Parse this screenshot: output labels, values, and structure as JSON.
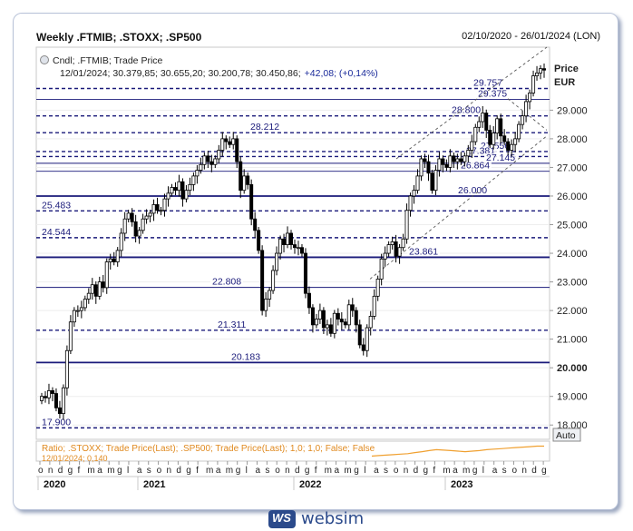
{
  "header": {
    "title": "Weekly .FTMIB; .STOXX; .SP500",
    "date_range": "02/10/2020 - 26/01/2024 (LON)"
  },
  "legend": {
    "series_label": "Cndl; .FTMIB; Trade Price",
    "ohlc_line": "12/01/2024; 30.379,85; 30.655,20; 30.200,78; 30.450,86;",
    "change_text": "+42,08; (+0,14%)"
  },
  "axis": {
    "price_label": "Price",
    "currency_label": "EUR",
    "auto_label": "Auto"
  },
  "ratio_panel": {
    "label": "Ratio; .STOXX; Trade Price(Last); .SP500; Trade Price(Last);  1,0; 1,0; False; False",
    "sub_label": "12/01/2024; 0,140"
  },
  "brand": {
    "name": "websim",
    "mark": "WS"
  },
  "colors": {
    "level": "#1a1a7a",
    "bull": "#ffffff",
    "bear": "#000000",
    "ratio": "#f0a030",
    "accent": "#1a2a9a"
  },
  "chart_data": {
    "type": "candlestick",
    "title": "Weekly .FTMIB; .STOXX; .SP500",
    "ylabel": "Price EUR",
    "ylim": [
      17500,
      31200
    ],
    "y_ticks": [
      {
        "value": 18000,
        "label": "18.000"
      },
      {
        "value": 19000,
        "label": "19.000"
      },
      {
        "value": 20000,
        "label": "20.000"
      },
      {
        "value": 21000,
        "label": "21.000"
      },
      {
        "value": 22000,
        "label": "22.000"
      },
      {
        "value": 23000,
        "label": "23.000"
      },
      {
        "value": 24000,
        "label": "24.000"
      },
      {
        "value": 25000,
        "label": "25.000"
      },
      {
        "value": 26000,
        "label": "26.000"
      },
      {
        "value": 27000,
        "label": "27.000"
      },
      {
        "value": 28000,
        "label": "28.000"
      },
      {
        "value": 29000,
        "label": "29.000"
      }
    ],
    "x_month_ticks": [
      "o",
      "n",
      "d",
      "g",
      "f",
      "m",
      "a",
      "m",
      "g",
      "l",
      "a",
      "s",
      "o",
      "n",
      "d",
      "g",
      "f",
      "m",
      "a",
      "m",
      "g",
      "l",
      "a",
      "s",
      "o",
      "n",
      "d",
      "g",
      "f",
      "m",
      "a",
      "m",
      "g",
      "l",
      "a",
      "s",
      "o",
      "n",
      "d",
      "g",
      "f",
      "m",
      "a",
      "m",
      "g",
      "l",
      "a",
      "s",
      "o",
      "n",
      "d",
      "g"
    ],
    "x_year_labels": [
      "2020",
      "2021",
      "2022",
      "2023"
    ],
    "levels": [
      {
        "value": 29757,
        "label": "29.757",
        "style": "dashed"
      },
      {
        "value": 29375,
        "label": "29.375",
        "style": "solid"
      },
      {
        "value": 28800,
        "label": "28.800",
        "style": "dashed"
      },
      {
        "value": 28212,
        "label": "28.212",
        "style": "dashed"
      },
      {
        "value": 27556,
        "label": "27.556",
        "style": "dashed"
      },
      {
        "value": 27381,
        "label": "27.381",
        "style": "dashed"
      },
      {
        "value": 27145,
        "label": "27.145",
        "style": "solid"
      },
      {
        "value": 26864,
        "label": "26.864",
        "style": "solid"
      },
      {
        "value": 26000,
        "label": "26.000",
        "style": "solid-thick"
      },
      {
        "value": 25483,
        "label": "25.483",
        "style": "dashed"
      },
      {
        "value": 24544,
        "label": "24.544",
        "style": "dashed"
      },
      {
        "value": 23861,
        "label": "23.861",
        "style": "solid-thick"
      },
      {
        "value": 22808,
        "label": "22.808",
        "style": "solid"
      },
      {
        "value": 21311,
        "label": "21.311",
        "style": "dashed"
      },
      {
        "value": 20183,
        "label": "20.183",
        "style": "solid-thick"
      },
      {
        "value": 17900,
        "label": "17.900",
        "style": "dashed"
      }
    ],
    "weekly_close": [
      19000,
      18950,
      19200,
      19100,
      18600,
      18400,
      19300,
      20600,
      21600,
      22000,
      22000,
      22100,
      22400,
      22600,
      22900,
      22500,
      23000,
      22800,
      23700,
      23800,
      23700,
      24100,
      24700,
      25200,
      25400,
      25100,
      24600,
      24800,
      25200,
      25300,
      25400,
      25700,
      25500,
      25500,
      25900,
      26100,
      26300,
      26200,
      26500,
      25900,
      26200,
      26400,
      26700,
      26900,
      27100,
      27400,
      27200,
      27100,
      27300,
      27600,
      28000,
      27900,
      27800,
      28000,
      27200,
      26200,
      26700,
      26400,
      25200,
      24800,
      24100,
      22000,
      22400,
      22700,
      23400,
      24000,
      24500,
      24300,
      24700,
      24300,
      24200,
      24200,
      24000,
      22600,
      22100,
      21500,
      21700,
      22000,
      21400,
      21500,
      21200,
      21900,
      21700,
      21600,
      21500,
      22200,
      22000,
      21500,
      20800,
      20600,
      21400,
      21800,
      22500,
      23100,
      23800,
      24000,
      24300,
      24400,
      23900,
      24200,
      24500,
      25500,
      26000,
      26200,
      26700,
      27300,
      27200,
      26800,
      26200,
      26900,
      27300,
      27100,
      27000,
      27400,
      27200,
      27300,
      27200,
      27400,
      27600,
      27900,
      28400,
      28600,
      28900,
      28300,
      27800,
      28200,
      28700,
      28100,
      27900,
      27600,
      27800,
      28000,
      28500,
      28800,
      29300,
      29600,
      30200,
      30300,
      30450,
      30400
    ],
    "ratio_values": [
      0.12,
      0.121,
      0.122,
      0.123,
      0.124,
      0.125,
      0.127,
      0.129,
      0.131,
      0.133,
      0.132,
      0.131,
      0.13,
      0.129,
      0.13,
      0.131,
      0.133,
      0.134,
      0.135,
      0.136,
      0.137,
      0.138,
      0.139,
      0.14,
      0.14
    ],
    "ratio_ylim": [
      0.11,
      0.15
    ]
  }
}
